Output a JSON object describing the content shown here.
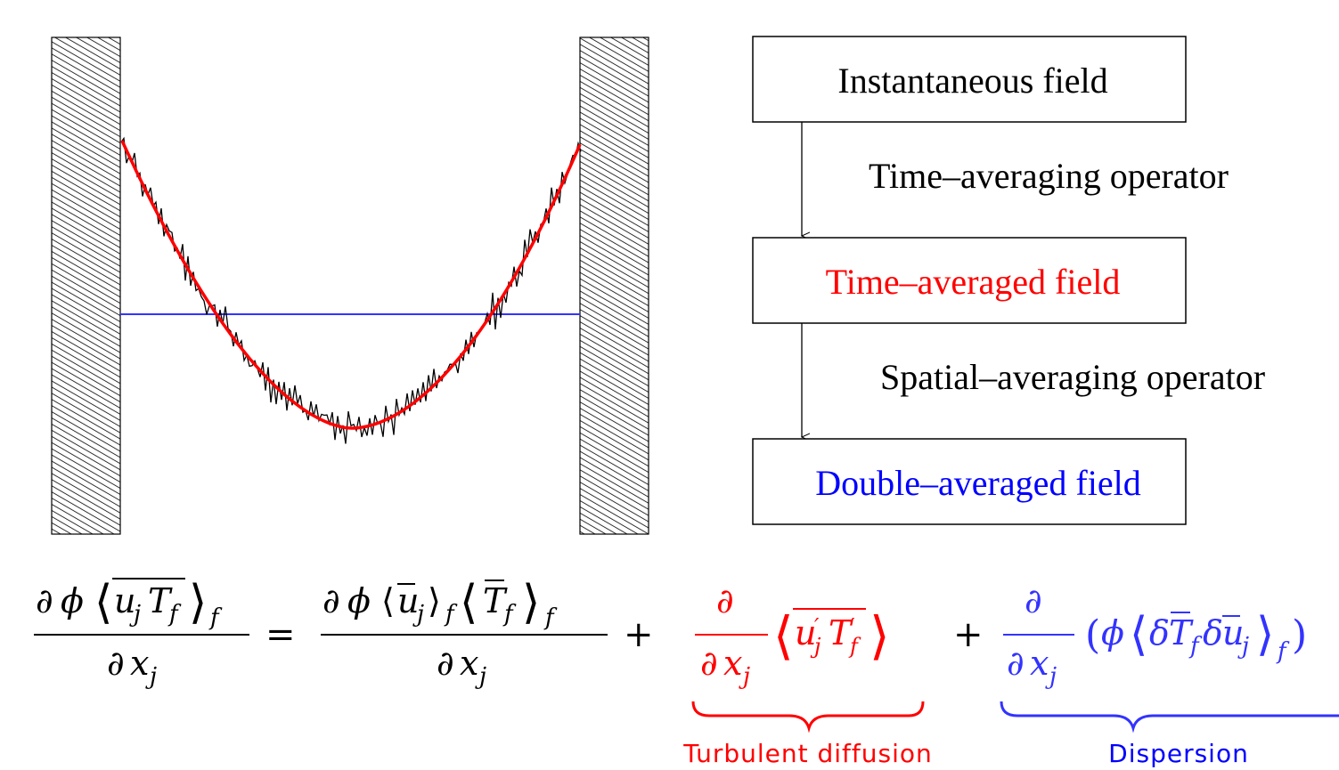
{
  "colors": {
    "instantaneous": "#000000",
    "time_averaged": "#ff0000",
    "double_averaged": "#0000ff",
    "turbulent": "#ff0000",
    "dispersion": "#0000ff"
  },
  "flowchart": {
    "box1": "Instantaneous field",
    "arrow1": "Time–averaging operator",
    "box2": "Time–averaged field",
    "arrow2": "Spatial–averaging operator",
    "box3": "Double–averaged field"
  },
  "equation": {
    "term_turbulent_label": "Turbulent diffusion",
    "term_dispersion_label": "Dispersion"
  }
}
